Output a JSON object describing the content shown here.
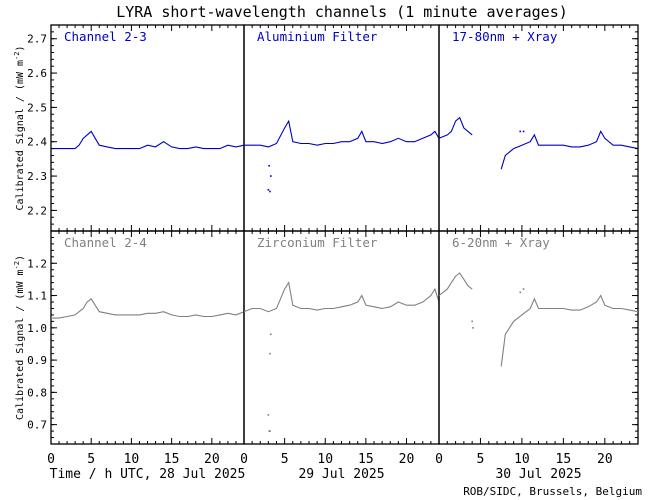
{
  "chart_data": {
    "type": "line",
    "title": "LYRA short-wavelength channels (1 minute averages)",
    "credit": "ROB/SIDC, Brussels, Belgium",
    "ylabel": "Calibrated Signal / (mW m",
    "ylabel_sup": "-2",
    "ylabel_close": ")",
    "x_ticks": [
      "0",
      "5",
      "10",
      "15",
      "20"
    ],
    "days": [
      {
        "caption": "Time / h UTC, 28 Jul 2025"
      },
      {
        "caption": "29 Jul 2025"
      },
      {
        "caption": "30 Jul 2025"
      }
    ],
    "xlim": [
      0,
      24
    ],
    "rows": [
      {
        "color": "#0000c8",
        "ylim": [
          2.14,
          2.74
        ],
        "y_ticks": [
          "2.2",
          "2.3",
          "2.4",
          "2.5",
          "2.6",
          "2.7"
        ],
        "y_tick_values": [
          2.2,
          2.3,
          2.4,
          2.5,
          2.6,
          2.7
        ],
        "panel_titles": [
          "Channel 2-3",
          "Aluminium Filter",
          "17-80nm + Xray"
        ],
        "series": [
          {
            "name": "Channel 2-3",
            "x": [
              0,
              1,
              2,
              3,
              3.5,
              4,
              4.5,
              5,
              5.5,
              6,
              7,
              8,
              9,
              10,
              11,
              12,
              13,
              14,
              15,
              16,
              17,
              18,
              19,
              20,
              21,
              22,
              23,
              24
            ],
            "y": [
              2.38,
              2.38,
              2.38,
              2.38,
              2.39,
              2.41,
              2.42,
              2.43,
              2.41,
              2.39,
              2.385,
              2.38,
              2.38,
              2.38,
              2.38,
              2.39,
              2.385,
              2.4,
              2.385,
              2.38,
              2.38,
              2.385,
              2.38,
              2.38,
              2.38,
              2.39,
              2.385,
              2.39
            ],
            "outliers": []
          },
          {
            "name": "Aluminium Filter",
            "x": [
              0,
              1,
              2,
              3,
              4,
              5,
              5.5,
              6,
              7,
              8,
              9,
              10,
              11,
              12,
              13,
              14,
              14.5,
              15,
              16,
              17,
              18,
              19,
              20,
              21,
              22,
              23,
              23.5,
              24
            ],
            "y": [
              2.39,
              2.39,
              2.39,
              2.385,
              2.395,
              2.44,
              2.46,
              2.4,
              2.395,
              2.395,
              2.39,
              2.395,
              2.395,
              2.4,
              2.4,
              2.41,
              2.43,
              2.4,
              2.4,
              2.395,
              2.4,
              2.41,
              2.4,
              2.4,
              2.41,
              2.42,
              2.43,
              2.41
            ],
            "outliers": [
              [
                3,
                2.26
              ],
              [
                3.2,
                2.255
              ],
              [
                3.1,
                2.33
              ],
              [
                3.3,
                2.3
              ]
            ]
          },
          {
            "name": "17-80nm + Xray",
            "x": [
              0,
              1,
              1.5,
              2,
              2.5,
              3,
              3.5,
              4,
              7.5,
              8,
              9,
              10,
              11,
              11.5,
              12,
              13,
              14,
              15,
              16,
              17,
              18,
              19,
              19.5,
              20,
              21,
              22,
              23,
              24
            ],
            "y": [
              2.41,
              2.42,
              2.43,
              2.46,
              2.47,
              2.44,
              2.43,
              2.42,
              2.32,
              2.36,
              2.38,
              2.39,
              2.4,
              2.42,
              2.39,
              2.39,
              2.39,
              2.39,
              2.385,
              2.385,
              2.39,
              2.4,
              2.43,
              2.41,
              2.39,
              2.39,
              2.385,
              2.38
            ],
            "gap": [
              4.2,
              7.4
            ],
            "outliers": [
              [
                9.8,
                2.43
              ],
              [
                10.2,
                2.43
              ]
            ]
          }
        ]
      },
      {
        "color": "#808080",
        "ylim": [
          0.64,
          1.3
        ],
        "y_ticks": [
          "0.7",
          "0.8",
          "0.9",
          "1.0",
          "1.1",
          "1.2"
        ],
        "y_tick_values": [
          0.7,
          0.8,
          0.9,
          1.0,
          1.1,
          1.2
        ],
        "panel_titles": [
          "Channel 2-4",
          "Zirconium Filter",
          "6-20nm + Xray"
        ],
        "series": [
          {
            "name": "Channel 2-4",
            "x": [
              0,
              1,
              2,
              3,
              3.5,
              4,
              4.5,
              5,
              5.5,
              6,
              7,
              8,
              9,
              10,
              11,
              12,
              13,
              14,
              15,
              16,
              17,
              18,
              19,
              20,
              21,
              22,
              23,
              24
            ],
            "y": [
              1.03,
              1.03,
              1.035,
              1.04,
              1.05,
              1.06,
              1.08,
              1.09,
              1.07,
              1.05,
              1.045,
              1.04,
              1.04,
              1.04,
              1.04,
              1.045,
              1.045,
              1.05,
              1.04,
              1.035,
              1.035,
              1.04,
              1.035,
              1.035,
              1.04,
              1.045,
              1.04,
              1.05
            ],
            "outliers": []
          },
          {
            "name": "Zirconium Filter",
            "x": [
              0,
              1,
              2,
              3,
              4,
              5,
              5.5,
              6,
              7,
              8,
              9,
              10,
              11,
              12,
              13,
              14,
              14.5,
              15,
              16,
              17,
              18,
              19,
              20,
              21,
              22,
              23,
              23.5,
              24
            ],
            "y": [
              1.05,
              1.06,
              1.06,
              1.05,
              1.06,
              1.12,
              1.14,
              1.07,
              1.06,
              1.06,
              1.055,
              1.06,
              1.06,
              1.065,
              1.07,
              1.08,
              1.1,
              1.07,
              1.065,
              1.06,
              1.065,
              1.08,
              1.07,
              1.07,
              1.08,
              1.1,
              1.12,
              1.08
            ],
            "outliers": [
              [
                3,
                0.73
              ],
              [
                3.1,
                0.68
              ],
              [
                3.2,
                0.68
              ],
              [
                3.2,
                0.92
              ],
              [
                3.3,
                0.98
              ]
            ]
          },
          {
            "name": "6-20nm + Xray",
            "x": [
              0,
              1,
              1.5,
              2,
              2.5,
              3,
              3.5,
              4,
              7.5,
              8,
              9,
              10,
              11,
              11.5,
              12,
              13,
              14,
              15,
              16,
              17,
              18,
              19,
              19.5,
              20,
              21,
              22,
              23,
              24
            ],
            "y": [
              1.1,
              1.12,
              1.14,
              1.16,
              1.17,
              1.15,
              1.13,
              1.12,
              0.88,
              0.98,
              1.02,
              1.04,
              1.06,
              1.09,
              1.06,
              1.06,
              1.06,
              1.06,
              1.055,
              1.055,
              1.065,
              1.08,
              1.1,
              1.07,
              1.06,
              1.06,
              1.055,
              1.05
            ],
            "gap": [
              4.2,
              7.4
            ],
            "outliers": [
              [
                9.8,
                1.11
              ],
              [
                10.2,
                1.12
              ],
              [
                4.0,
                1.02
              ],
              [
                4.1,
                1.0
              ]
            ]
          }
        ]
      }
    ]
  }
}
